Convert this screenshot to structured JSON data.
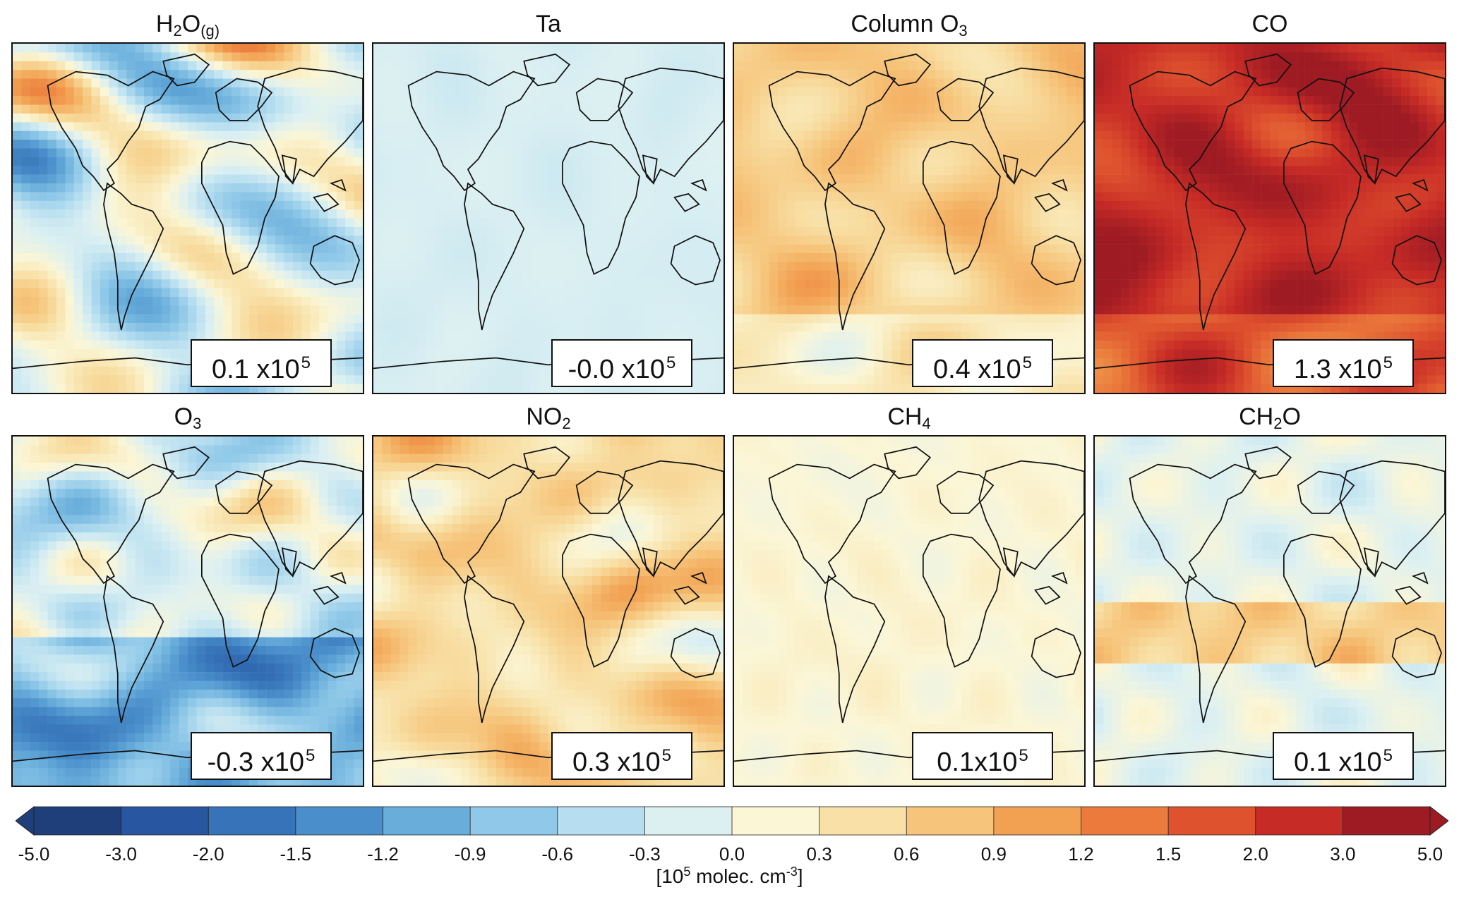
{
  "panels": [
    {
      "id": "h2o",
      "title": "H",
      "title_sub": "2",
      "title_after": "O",
      "title_sub2": "(g)",
      "mean_value": "0.1 x10",
      "mean_exp": "5",
      "mean_num": 0.1,
      "background_bias": -0.1
    },
    {
      "id": "ta",
      "title": "Ta",
      "mean_value": "-0.0 x10",
      "mean_exp": "5",
      "mean_num": 0.0,
      "background_bias": -0.15
    },
    {
      "id": "colo3",
      "title": "Column O",
      "title_sub": "3",
      "mean_value": "0.4 x10",
      "mean_exp": "5",
      "mean_num": 0.4,
      "background_bias": 0.45
    },
    {
      "id": "co",
      "title": "CO",
      "mean_value": "1.3 x10",
      "mean_exp": "5",
      "mean_num": 1.3,
      "background_bias": 1.5
    },
    {
      "id": "o3",
      "title": "O",
      "title_sub": "3",
      "mean_value": "-0.3 x10",
      "mean_exp": "5",
      "mean_num": -0.3,
      "background_bias": -0.3
    },
    {
      "id": "no2",
      "title": "NO",
      "title_sub": "2",
      "mean_value": "0.3 x10",
      "mean_exp": "5",
      "mean_num": 0.3,
      "background_bias": 0.4
    },
    {
      "id": "ch4",
      "title": "CH",
      "title_sub": "4",
      "mean_value": "0.1x10",
      "mean_exp": "5",
      "mean_num": 0.1,
      "background_bias": 0.12
    },
    {
      "id": "ch2o",
      "title": "CH",
      "title_sub": "2",
      "title_after": "O",
      "mean_value": "0.1 x10",
      "mean_exp": "5",
      "mean_num": 0.1,
      "background_bias": 0.1
    }
  ],
  "colorbar": {
    "ticks": [
      "-5.0",
      "-3.0",
      "-2.0",
      "-1.5",
      "-1.2",
      "-0.9",
      "-0.6",
      "-0.3",
      "0.0",
      "0.3",
      "0.6",
      "0.9",
      "1.2",
      "1.5",
      "2.0",
      "3.0",
      "5.0"
    ],
    "label_prefix": "[10",
    "label_exp": "5",
    "label_suffix": " molec. cm",
    "label_exp2": "-3",
    "label_end": "]",
    "colors": [
      "#1f3f7a",
      "#2856a0",
      "#3673b8",
      "#4a8fcb",
      "#69aedb",
      "#8fc8e8",
      "#b6def0",
      "#dcf0f2",
      "#fbf6d6",
      "#f8e0a6",
      "#f6c47a",
      "#f2a152",
      "#eb7a3c",
      "#de522e",
      "#c72b26",
      "#9e1b23"
    ]
  }
}
